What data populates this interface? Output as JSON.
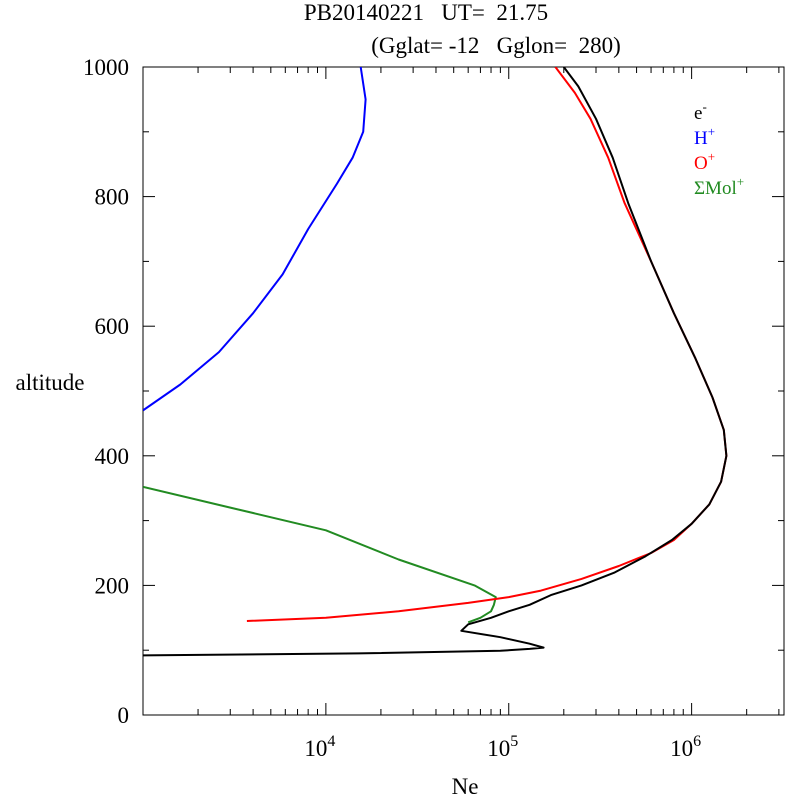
{
  "chart_data": {
    "type": "line",
    "title_line1": "PB20140221   UT=  21.75",
    "title_line2": "(Gglat= -12   Gglon=  280)",
    "xlabel": "Ne",
    "ylabel": "altitude",
    "x_scale": "log",
    "xlim": [
      1000,
      3200000
    ],
    "ylim": [
      0,
      1000
    ],
    "x_ticks": [
      {
        "base": "10",
        "exp": "4",
        "value": 10000
      },
      {
        "base": "10",
        "exp": "5",
        "value": 100000
      },
      {
        "base": "10",
        "exp": "6",
        "value": 1000000
      }
    ],
    "y_ticks": [
      {
        "label": "0",
        "value": 0
      },
      {
        "label": "200",
        "value": 200
      },
      {
        "label": "400",
        "value": 400
      },
      {
        "label": "600",
        "value": 600
      },
      {
        "label": "800",
        "value": 800
      },
      {
        "label": "1000",
        "value": 1000
      }
    ],
    "legend_position": "top-right",
    "series": [
      {
        "name_base": "e",
        "name_sup": "-",
        "color": "#000000",
        "points": [
          [
            1000,
            92
          ],
          [
            15000,
            95
          ],
          [
            90000,
            99
          ],
          [
            130000,
            102
          ],
          [
            155000,
            104
          ],
          [
            130000,
            110
          ],
          [
            90000,
            120
          ],
          [
            55000,
            130
          ],
          [
            60000,
            140
          ],
          [
            80000,
            150
          ],
          [
            100000,
            160
          ],
          [
            130000,
            170
          ],
          [
            170000,
            185
          ],
          [
            250000,
            200
          ],
          [
            380000,
            220
          ],
          [
            560000,
            245
          ],
          [
            780000,
            270
          ],
          [
            1000000,
            295
          ],
          [
            1250000,
            325
          ],
          [
            1450000,
            360
          ],
          [
            1550000,
            400
          ],
          [
            1500000,
            440
          ],
          [
            1300000,
            490
          ],
          [
            1050000,
            550
          ],
          [
            800000,
            620
          ],
          [
            600000,
            700
          ],
          [
            450000,
            790
          ],
          [
            370000,
            860
          ],
          [
            300000,
            920
          ],
          [
            240000,
            970
          ],
          [
            200000,
            1000
          ]
        ]
      },
      {
        "name_base": "H",
        "name_sup": "+",
        "color": "#0000ff",
        "points": [
          [
            1000,
            470
          ],
          [
            1600,
            510
          ],
          [
            2600,
            560
          ],
          [
            4000,
            620
          ],
          [
            5800,
            680
          ],
          [
            8000,
            750
          ],
          [
            11500,
            820
          ],
          [
            14000,
            860
          ],
          [
            16000,
            900
          ],
          [
            16500,
            950
          ],
          [
            15500,
            1000
          ]
        ]
      },
      {
        "name_base": "O",
        "name_sup": "+",
        "color": "#ff0000",
        "points": [
          [
            3700,
            145
          ],
          [
            10000,
            150
          ],
          [
            25000,
            160
          ],
          [
            60000,
            173
          ],
          [
            100000,
            182
          ],
          [
            150000,
            192
          ],
          [
            250000,
            210
          ],
          [
            400000,
            230
          ],
          [
            600000,
            250
          ],
          [
            800000,
            270
          ],
          [
            1000000,
            295
          ],
          [
            1250000,
            325
          ],
          [
            1450000,
            360
          ],
          [
            1550000,
            400
          ],
          [
            1500000,
            440
          ],
          [
            1300000,
            490
          ],
          [
            1050000,
            550
          ],
          [
            800000,
            620
          ],
          [
            600000,
            700
          ],
          [
            430000,
            790
          ],
          [
            350000,
            860
          ],
          [
            280000,
            920
          ],
          [
            230000,
            960
          ],
          [
            180000,
            1000
          ]
        ]
      },
      {
        "name_base": "ΣMol",
        "name_sup": "+",
        "color": "#228b22",
        "points": [
          [
            1000,
            352
          ],
          [
            3000,
            320
          ],
          [
            10000,
            285
          ],
          [
            25000,
            240
          ],
          [
            65000,
            200
          ],
          [
            85000,
            182
          ],
          [
            83000,
            170
          ],
          [
            80000,
            160
          ],
          [
            70000,
            150
          ],
          [
            60000,
            143
          ]
        ]
      }
    ]
  }
}
